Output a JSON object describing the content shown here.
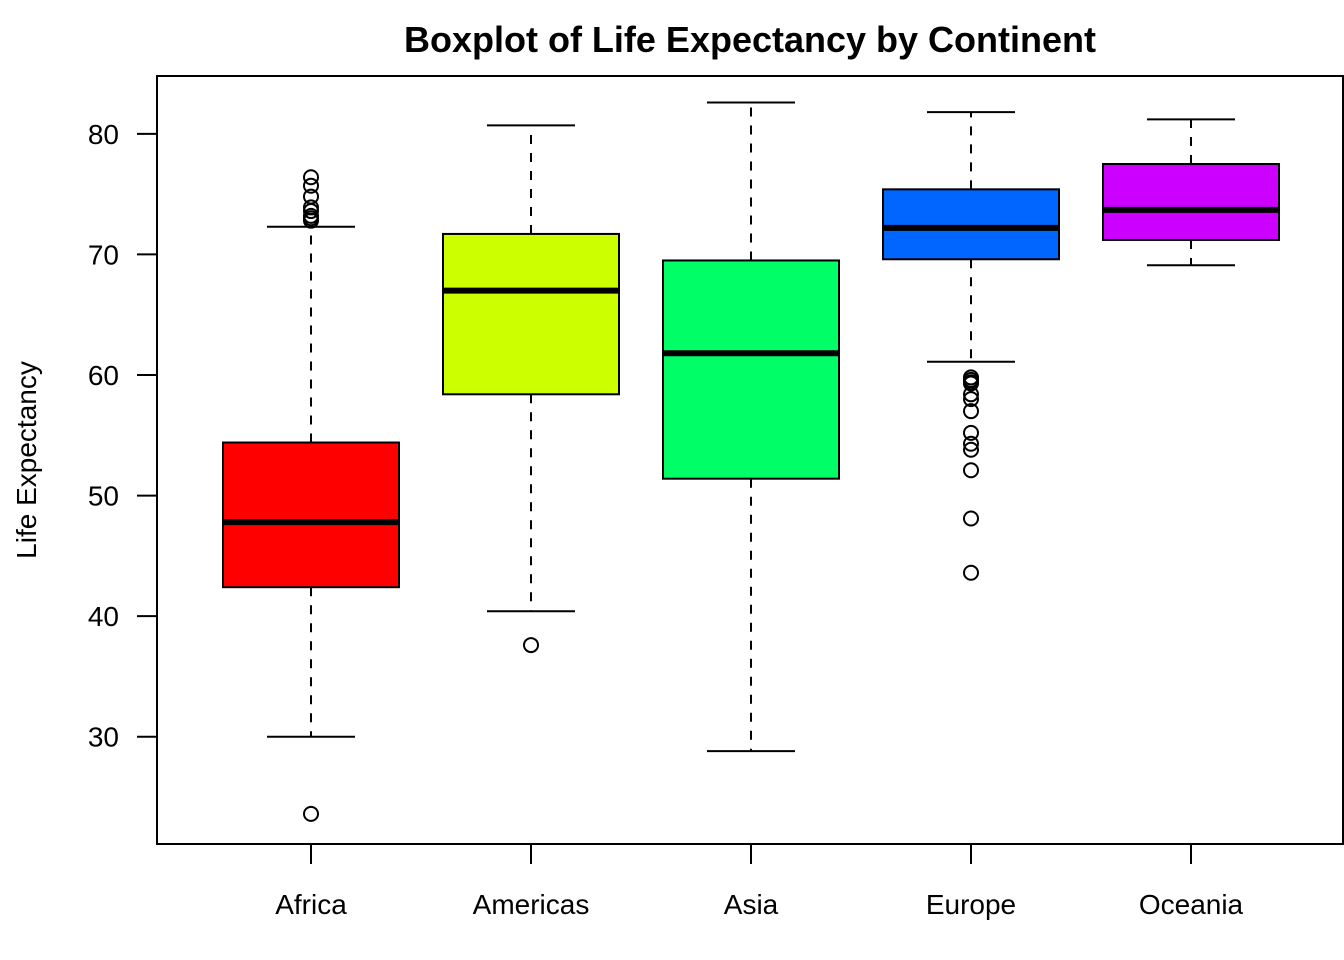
{
  "chart_data": {
    "type": "boxplot",
    "title": "Boxplot of Life Expectancy by Continent",
    "ylabel": "Life Expectancy",
    "xlabel": "",
    "ylim": [
      21.1,
      84.8
    ],
    "yticks": [
      "30",
      "40",
      "50",
      "60",
      "70",
      "80"
    ],
    "grid": false,
    "legend": "none",
    "categories": [
      "Africa",
      "Americas",
      "Asia",
      "Europe",
      "Oceania"
    ],
    "colors": [
      "#FF0000",
      "#CCFF00",
      "#00FF66",
      "#0066FF",
      "#CC00FF"
    ],
    "series": [
      {
        "category": "Africa",
        "whisker_low": 30.0,
        "q1": 42.4,
        "median": 47.8,
        "q3": 54.4,
        "whisker_high": 72.3,
        "outliers": [
          76.4,
          75.7,
          74.8,
          73.9,
          73.6,
          73.2,
          73.0,
          72.8,
          23.6
        ]
      },
      {
        "category": "Americas",
        "whisker_low": 40.4,
        "q1": 58.4,
        "median": 67.0,
        "q3": 71.7,
        "whisker_high": 80.7,
        "outliers": [
          37.6
        ]
      },
      {
        "category": "Asia",
        "whisker_low": 28.8,
        "q1": 51.4,
        "median": 61.8,
        "q3": 69.5,
        "whisker_high": 82.6,
        "outliers": []
      },
      {
        "category": "Europe",
        "whisker_low": 61.1,
        "q1": 69.6,
        "median": 72.2,
        "q3": 75.4,
        "whisker_high": 81.8,
        "outliers": [
          59.8,
          59.6,
          59.4,
          59.3,
          58.4,
          58.0,
          57.0,
          55.2,
          54.3,
          53.8,
          52.1,
          48.1,
          43.6
        ]
      },
      {
        "category": "Oceania",
        "whisker_low": 69.1,
        "q1": 71.2,
        "median": 73.7,
        "q3": 77.5,
        "whisker_high": 81.2,
        "outliers": []
      }
    ]
  }
}
